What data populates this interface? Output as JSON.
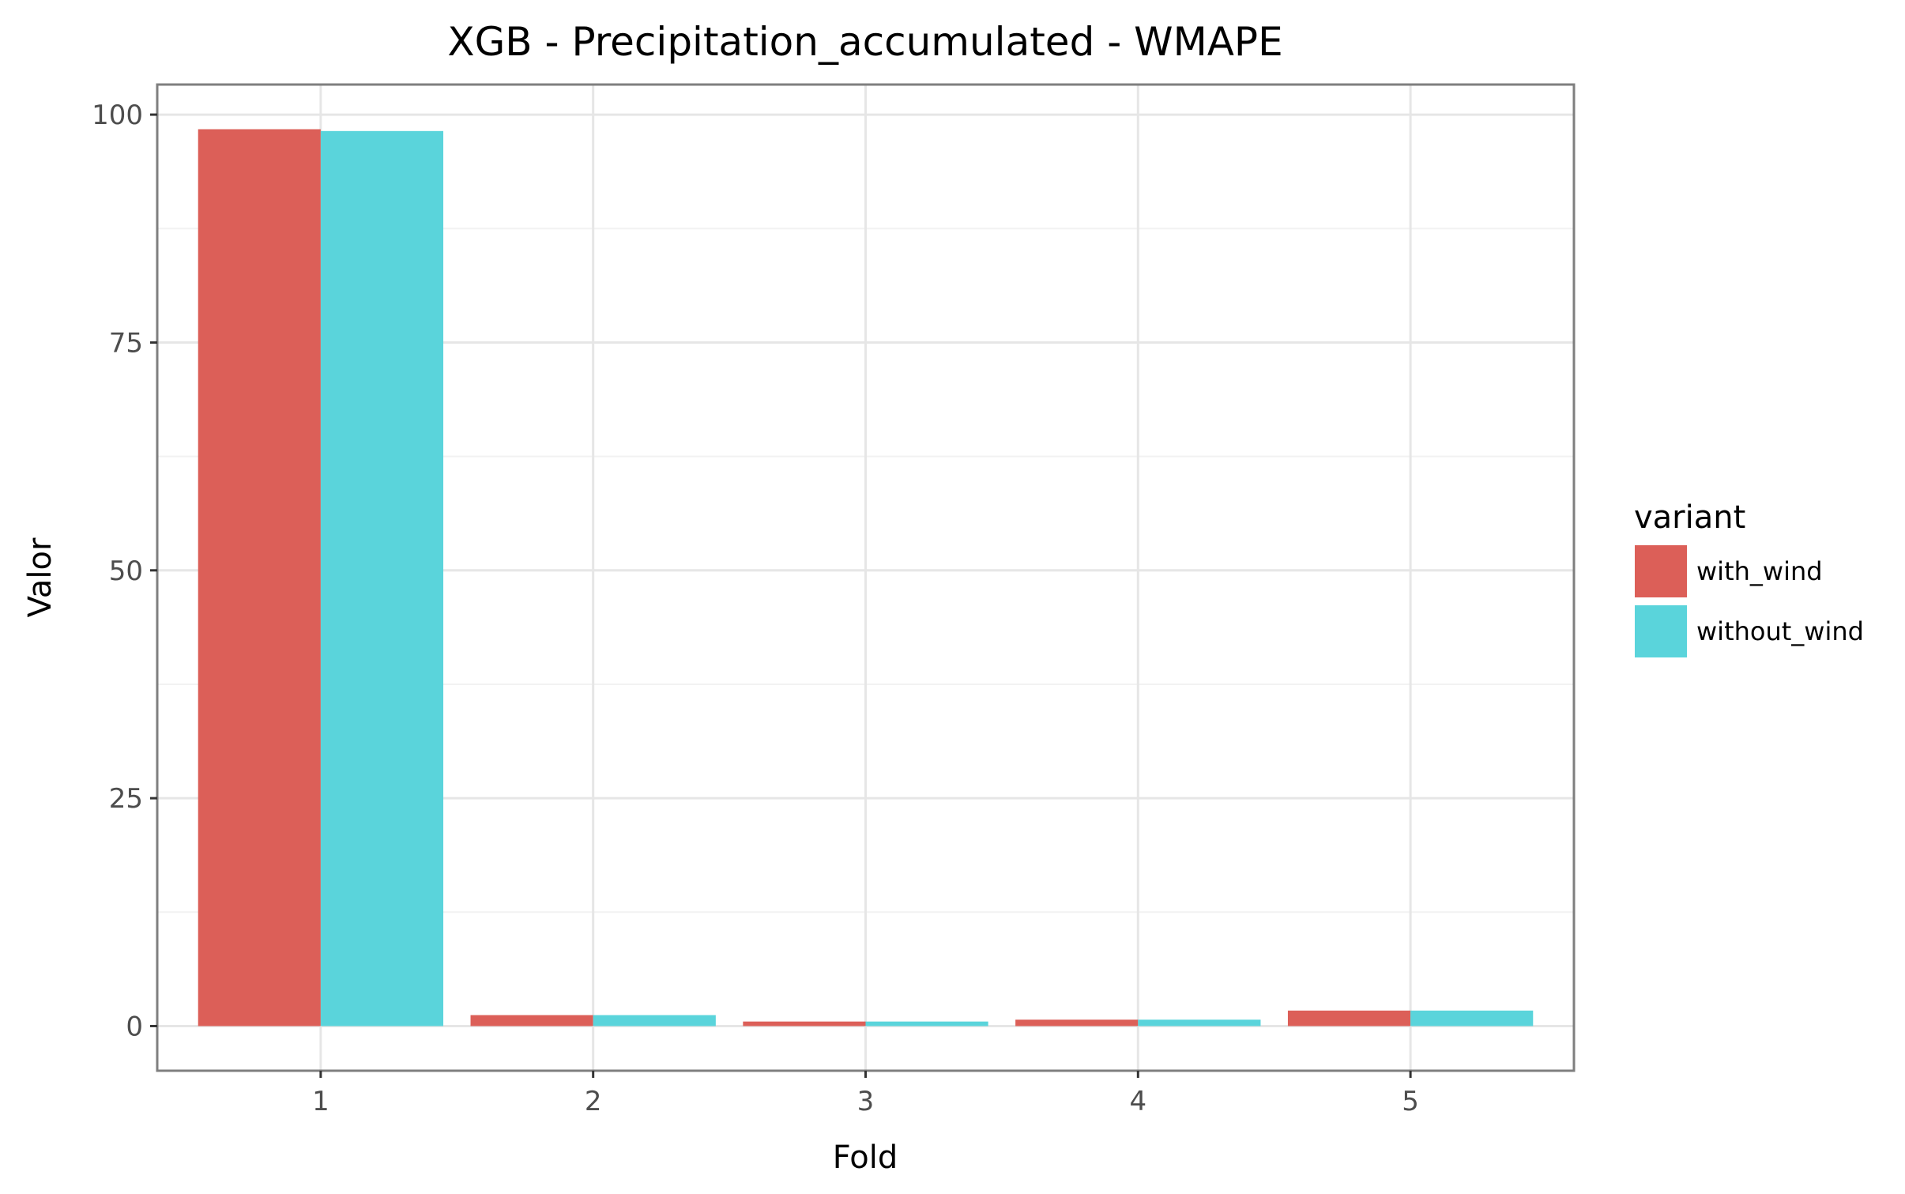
{
  "chart_data": {
    "type": "bar",
    "title": "XGB - Precipitation_accumulated - WMAPE",
    "xlabel": "Fold",
    "ylabel": "Valor",
    "categories": [
      "1",
      "2",
      "3",
      "4",
      "5"
    ],
    "series": [
      {
        "name": "with_wind",
        "color": "#dc5f58",
        "values": [
          98.4,
          1.2,
          0.5,
          0.7,
          1.7
        ]
      },
      {
        "name": "without_wind",
        "color": "#5ad4db",
        "values": [
          98.2,
          1.2,
          0.5,
          0.7,
          1.7
        ]
      }
    ],
    "ylim": [
      -4.9,
      103.3
    ],
    "yticks": [
      0,
      25,
      50,
      75,
      100
    ],
    "ytick_labels": [
      "0",
      "25",
      "50",
      "75",
      "100"
    ],
    "grid": true,
    "legend": {
      "title": "variant",
      "placement": "right"
    }
  }
}
